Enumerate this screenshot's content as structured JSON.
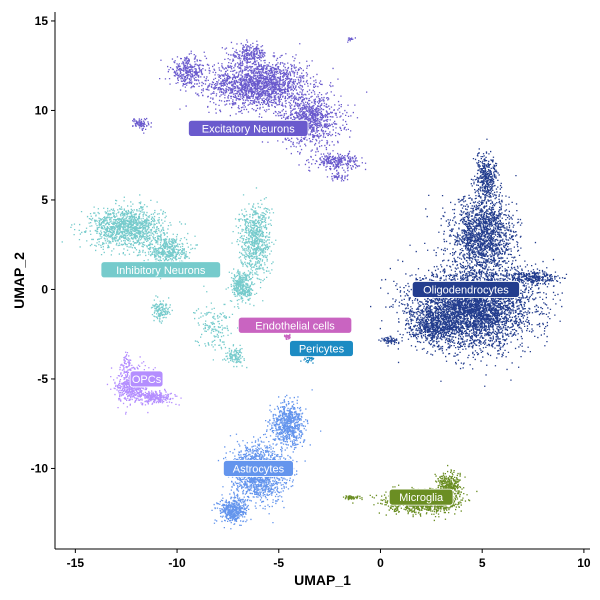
{
  "chart_data": {
    "type": "scatter",
    "title": "",
    "xlabel": "UMAP_1",
    "ylabel": "UMAP_2",
    "xlim": [
      -16,
      10.3
    ],
    "ylim": [
      -14.5,
      15.5
    ],
    "xticks": [
      -15,
      -10,
      -5,
      0,
      5,
      10
    ],
    "yticks": [
      -10,
      -5,
      0,
      5,
      10,
      15
    ],
    "grid": false,
    "legend": "none",
    "clusters": [
      {
        "name": "Excitatory Neurons",
        "color": "#6A5ACD",
        "label_at": [
          -6.5,
          9.0
        ],
        "blobs": [
          [
            -6,
            11.5,
            2.2,
            1.2,
            1800
          ],
          [
            -3.5,
            9.5,
            1.4,
            1.3,
            900
          ],
          [
            -9.5,
            12.2,
            0.8,
            0.7,
            300
          ],
          [
            -6.5,
            13.2,
            0.8,
            0.5,
            200
          ],
          [
            -2.2,
            7.2,
            1.0,
            0.4,
            250
          ],
          [
            -11.8,
            9.3,
            0.35,
            0.3,
            80
          ],
          [
            -1.5,
            14.0,
            0.2,
            0.1,
            15
          ],
          [
            -2.1,
            6.3,
            0.4,
            0.2,
            40
          ]
        ]
      },
      {
        "name": "Inhibitory Neurons",
        "color": "#76CBCC",
        "label_at": [
          -10.8,
          1.1
        ],
        "blobs": [
          [
            -12.5,
            3.5,
            1.6,
            1.0,
            1200
          ],
          [
            -10.5,
            2.2,
            0.9,
            0.8,
            450
          ],
          [
            -6.2,
            2.8,
            0.7,
            1.8,
            700
          ],
          [
            -6.8,
            0.2,
            0.5,
            0.8,
            350
          ],
          [
            -8.2,
            -2.0,
            0.8,
            1.2,
            150
          ],
          [
            -7.2,
            -3.7,
            0.4,
            0.4,
            120
          ],
          [
            -10.8,
            -1.2,
            0.4,
            0.5,
            130
          ]
        ]
      },
      {
        "name": "OPCs",
        "color": "#B48EFF",
        "label_at": [
          -11.5,
          -5.0
        ],
        "blobs": [
          [
            -12.2,
            -5.3,
            0.7,
            0.9,
            600
          ],
          [
            -11.0,
            -6.0,
            0.8,
            0.3,
            220
          ],
          [
            -12.5,
            -4.0,
            0.2,
            0.5,
            40
          ]
        ]
      },
      {
        "name": "Endothelial cells",
        "color": "#C964C1",
        "label_at": [
          -4.2,
          -2.0
        ],
        "blobs": [
          [
            -4.6,
            -2.6,
            0.15,
            0.15,
            25
          ]
        ]
      },
      {
        "name": "Pericytes",
        "color": "#1C8BC3",
        "label_at": [
          -2.9,
          -3.3
        ],
        "blobs": [
          [
            -3.5,
            -3.8,
            0.25,
            0.2,
            40
          ]
        ]
      },
      {
        "name": "Oligodendrocytes",
        "color": "#233D8E",
        "label_at": [
          4.2,
          0.0
        ],
        "blobs": [
          [
            4.5,
            -1.0,
            2.6,
            2.0,
            4000
          ],
          [
            5.0,
            3.0,
            1.4,
            2.0,
            1600
          ],
          [
            5.2,
            6.2,
            0.5,
            1.2,
            400
          ],
          [
            7.5,
            0.7,
            1.2,
            0.35,
            300
          ],
          [
            2.5,
            -2.0,
            1.0,
            0.8,
            500
          ],
          [
            0.4,
            -2.8,
            0.4,
            0.2,
            60
          ]
        ]
      },
      {
        "name": "Astrocytes",
        "color": "#6495ED",
        "label_at": [
          -6.0,
          -10.0
        ],
        "blobs": [
          [
            -6.0,
            -10.2,
            1.2,
            1.4,
            1400
          ],
          [
            -4.6,
            -7.5,
            0.7,
            1.1,
            700
          ],
          [
            -7.3,
            -12.3,
            0.6,
            0.6,
            450
          ]
        ]
      },
      {
        "name": "Microglia",
        "color": "#6B8E23",
        "label_at": [
          2.0,
          -11.6
        ],
        "blobs": [
          [
            2.0,
            -11.8,
            1.5,
            0.55,
            1300
          ],
          [
            3.3,
            -11.0,
            0.5,
            0.7,
            350
          ],
          [
            -1.5,
            -11.6,
            0.5,
            0.1,
            50
          ]
        ]
      }
    ]
  }
}
